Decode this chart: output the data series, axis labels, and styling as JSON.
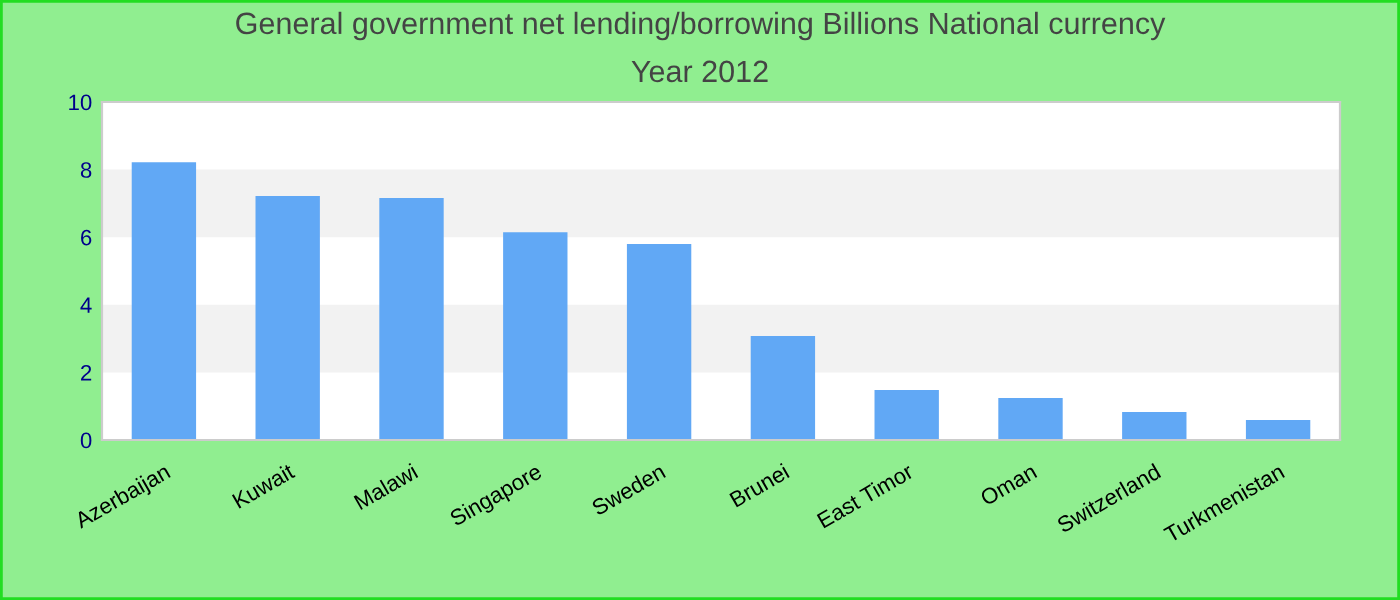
{
  "chart_data": {
    "type": "bar",
    "title": "General government net lending/borrowing Billions National currency",
    "subtitle": "Year 2012",
    "categories": [
      "Azerbaijan",
      "Kuwait",
      "Malawi",
      "Singapore",
      "Sweden",
      "Brunei",
      "East Timor",
      "Oman",
      "Switzerland",
      "Turkmenistan"
    ],
    "values": [
      8.22,
      7.22,
      7.16,
      6.15,
      5.8,
      3.08,
      1.48,
      1.24,
      0.83,
      0.59
    ],
    "color": "#61a8f5",
    "ylim": [
      0,
      10
    ],
    "yticks": [
      0,
      2,
      4,
      6,
      8,
      10
    ],
    "bands": [
      {
        "axis": "y",
        "from": 2,
        "to": 4,
        "color": "#f2f2f2"
      },
      {
        "axis": "y",
        "from": 6,
        "to": 8,
        "color": "#f2f2f2"
      }
    ],
    "grid": false,
    "legend": false
  }
}
